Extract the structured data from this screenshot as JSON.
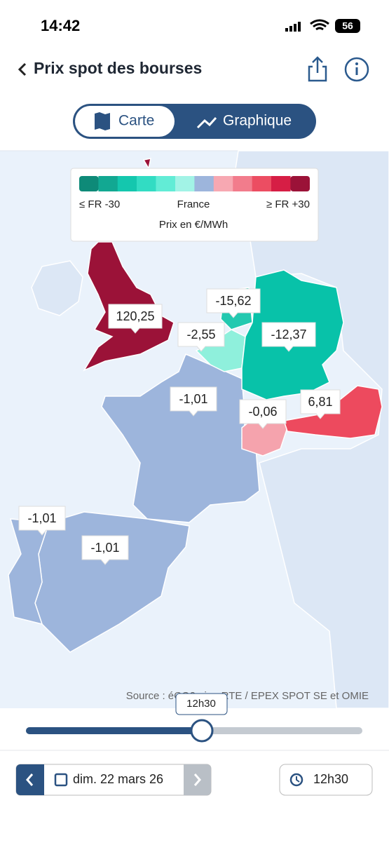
{
  "status_bar": {
    "time": "14:42",
    "battery": "56"
  },
  "header": {
    "title": "Prix spot des bourses"
  },
  "tabs": [
    {
      "label": "Carte"
    },
    {
      "label": "Graphique"
    }
  ],
  "legend": {
    "left": "≤ FR -30",
    "center": "France",
    "right": "≥ FR +30",
    "unit": "Prix en €/MWh"
  },
  "map_labels": [
    {
      "text": "120,25"
    },
    {
      "text": "-15,62"
    },
    {
      "text": "-2,55"
    },
    {
      "text": "-12,37"
    },
    {
      "text": "-1,01"
    },
    {
      "text": "-0,06"
    },
    {
      "text": "6,81"
    },
    {
      "text": "-1,01"
    },
    {
      "text": "-1,01"
    }
  ],
  "source": "Source : éCO2mix - RTE / EPEX SPOT SE et OMIE",
  "slider": {
    "tooltip": "12h30"
  },
  "footer": {
    "date": "dim. 22 mars 26",
    "time": "12h30"
  }
}
